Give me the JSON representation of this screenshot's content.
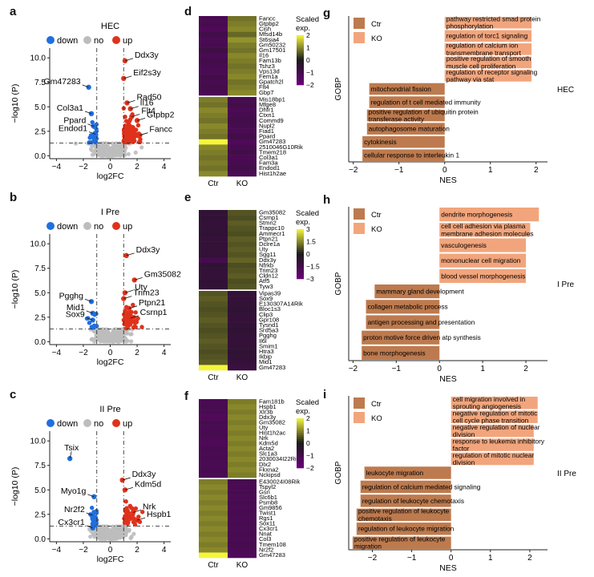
{
  "panel_letters": [
    "a",
    "b",
    "c",
    "d",
    "e",
    "f",
    "g",
    "h",
    "i"
  ],
  "legend_volcano": {
    "down": "down",
    "no": "no",
    "up": "up"
  },
  "legend_bar": {
    "ctr": "Ctr",
    "ko": "KO"
  },
  "heatmap_legend_title_1": "Scaled",
  "heatmap_legend_title_2": "exp.",
  "colors": {
    "down": "#1f6fe0",
    "no": "#bdbdbd",
    "up": "#e0321b",
    "ctr": "#bd7a4e",
    "ko": "#f2a57c",
    "heat_low": "#6b007a",
    "heat_mid": "#1a1a1a",
    "heat_high": "#f5f53c"
  },
  "chart_data": [
    {
      "type": "scatter",
      "panel": "a",
      "title": "HEC",
      "xlabel": "log2FC",
      "ylabel": "−log10 (P)",
      "xlim": [
        -4.5,
        4.5
      ],
      "ylim": [
        -0.3,
        11
      ],
      "xticks": [
        -4,
        -2,
        0,
        2,
        4
      ],
      "yticks": [
        0,
        2.5,
        5,
        7.5,
        10
      ],
      "ytick_labels": [
        "0.0",
        "2.5",
        "5.0",
        "7.5",
        "10.0"
      ],
      "thresholds": {
        "x": [
          -1,
          1
        ],
        "y": 1.3
      },
      "labeled_points": [
        {
          "label": "Ddx3y",
          "x": 1.1,
          "y": 9.7,
          "group": "up"
        },
        {
          "label": "Eif2s3y",
          "x": 1.0,
          "y": 7.9,
          "group": "up"
        },
        {
          "label": "Gm47283",
          "x": -1.6,
          "y": 7.0,
          "group": "down"
        },
        {
          "label": "Rad50",
          "x": 1.25,
          "y": 5.4,
          "group": "up"
        },
        {
          "label": "Il16",
          "x": 1.5,
          "y": 4.8,
          "group": "up"
        },
        {
          "label": "Col3a1",
          "x": -1.4,
          "y": 4.3,
          "group": "down"
        },
        {
          "label": "Flt4",
          "x": 1.6,
          "y": 4.0,
          "group": "up"
        },
        {
          "label": "Gtpbp2",
          "x": 2.0,
          "y": 3.6,
          "group": "up"
        },
        {
          "label": "Ppard",
          "x": -1.2,
          "y": 3.0,
          "group": "down"
        },
        {
          "label": "Endod1",
          "x": -1.1,
          "y": 2.2,
          "group": "down"
        },
        {
          "label": "Fancc",
          "x": 2.2,
          "y": 2.1,
          "group": "up"
        }
      ]
    },
    {
      "type": "scatter",
      "panel": "b",
      "title": "I Pre",
      "xlabel": "log2FC",
      "ylabel": "−log10 (P)",
      "xlim": [
        -4.5,
        4.5
      ],
      "ylim": [
        -0.3,
        11
      ],
      "xticks": [
        -4,
        -2,
        0,
        2,
        4
      ],
      "yticks": [
        0,
        2.5,
        5,
        7.5,
        10
      ],
      "ytick_labels": [
        "0.0",
        "2.5",
        "5.0",
        "7.5",
        "10.0"
      ],
      "thresholds": {
        "x": [
          -1,
          1
        ],
        "y": 1.3
      },
      "labeled_points": [
        {
          "label": "Ddx3y",
          "x": 1.2,
          "y": 8.8,
          "group": "up"
        },
        {
          "label": "Gm35082",
          "x": 1.8,
          "y": 6.3,
          "group": "up"
        },
        {
          "label": "Uty",
          "x": 1.1,
          "y": 5.0,
          "group": "up"
        },
        {
          "label": "Trim23",
          "x": 1.0,
          "y": 4.4,
          "group": "up"
        },
        {
          "label": "Pgghg",
          "x": -1.4,
          "y": 4.1,
          "group": "down"
        },
        {
          "label": "Ptpn21",
          "x": 1.4,
          "y": 3.4,
          "group": "up"
        },
        {
          "label": "Mid1",
          "x": -1.3,
          "y": 2.9,
          "group": "down"
        },
        {
          "label": "Csrnp1",
          "x": 1.5,
          "y": 2.4,
          "group": "up"
        },
        {
          "label": "Sox9",
          "x": -1.3,
          "y": 2.2,
          "group": "down"
        }
      ]
    },
    {
      "type": "scatter",
      "panel": "c",
      "title": "II Pre",
      "xlabel": "log2FC",
      "ylabel": "−log10 (P)",
      "xlim": [
        -4.5,
        4.5
      ],
      "ylim": [
        -0.3,
        11
      ],
      "xticks": [
        -4,
        -2,
        0,
        2,
        4
      ],
      "yticks": [
        0,
        2.5,
        5,
        7.5,
        10
      ],
      "ytick_labels": [
        "0.0",
        "2.5",
        "5.0",
        "7.5",
        "10.0"
      ],
      "thresholds": {
        "x": [
          -1,
          1
        ],
        "y": 1.3
      },
      "labeled_points": [
        {
          "label": "Tsix",
          "x": -3.0,
          "y": 8.2,
          "group": "down"
        },
        {
          "label": "Ddx3y",
          "x": 0.9,
          "y": 6.0,
          "group": "up"
        },
        {
          "label": "Kdm5d",
          "x": 1.1,
          "y": 5.0,
          "group": "up"
        },
        {
          "label": "Myo1g",
          "x": -1.2,
          "y": 4.3,
          "group": "down"
        },
        {
          "label": "Nrk",
          "x": 1.7,
          "y": 2.7,
          "group": "up"
        },
        {
          "label": "Nr2f2",
          "x": -1.3,
          "y": 2.4,
          "group": "down"
        },
        {
          "label": "Hspb1",
          "x": 2.0,
          "y": 1.9,
          "group": "up"
        },
        {
          "label": "Cx3cr1",
          "x": -1.3,
          "y": 1.1,
          "group": "down"
        }
      ]
    },
    {
      "type": "heatmap",
      "panel": "d",
      "columns": [
        "Ctr",
        "KO"
      ],
      "legend_range": [
        -2,
        2
      ],
      "legend_ticks": [
        2,
        1,
        0,
        -1,
        -2
      ],
      "rows": [
        "Fancc",
        "Gtpbp2",
        "Cish",
        "Mfsd14b",
        "St6sia4",
        "Gm50232",
        "Gm17501",
        "Il16",
        "Fam13b",
        "Tshz3",
        "Vps13d",
        "Fem1a",
        "Gpatch2l",
        "Flt4",
        "Gbp7",
        "Mis18bp1",
        "Mfge8",
        "Dhfr1",
        "Ctxn1",
        "Commd9",
        "Nupl2",
        "Fiad1",
        "Ppard",
        "Gm47283",
        "2510046G10Rik",
        "Tmem218",
        "Col3a1",
        "Fam3a",
        "Endod1",
        "Hist1h2ae"
      ],
      "split_after": 15,
      "values": [
        [
          -1.2,
          0.8
        ],
        [
          -1.1,
          0.9
        ],
        [
          -1.3,
          1.0
        ],
        [
          -1.0,
          0.7
        ],
        [
          -1.2,
          1.1
        ],
        [
          -1.1,
          0.9
        ],
        [
          -0.9,
          0.8
        ],
        [
          -1.2,
          1.0
        ],
        [
          -1.0,
          0.9
        ],
        [
          -1.1,
          0.8
        ],
        [
          -1.2,
          0.9
        ],
        [
          -1.0,
          1.0
        ],
        [
          -1.1,
          0.8
        ],
        [
          -1.0,
          0.9
        ],
        [
          -1.2,
          1.0
        ],
        [
          0.9,
          -1.1
        ],
        [
          0.8,
          -1.0
        ],
        [
          1.0,
          -1.2
        ],
        [
          0.9,
          -1.1
        ],
        [
          0.8,
          -1.0
        ],
        [
          1.0,
          -1.1
        ],
        [
          0.9,
          -1.2
        ],
        [
          0.8,
          -1.0
        ],
        [
          2.0,
          -1.3
        ],
        [
          1.0,
          -1.1
        ],
        [
          0.9,
          -1.0
        ],
        [
          0.8,
          -1.2
        ],
        [
          0.9,
          -1.1
        ],
        [
          0.8,
          -1.0
        ],
        [
          1.0,
          -1.2
        ]
      ]
    },
    {
      "type": "heatmap",
      "panel": "e",
      "columns": [
        "Ctr",
        "KO"
      ],
      "legend_range": [
        -3,
        3
      ],
      "legend_ticks": [
        3,
        1.5,
        0,
        -1.5,
        -3
      ],
      "rows": [
        "Gm35082",
        "Csrnp1",
        "Stmn2",
        "Trappc10",
        "Ammecr1",
        "Ptpn21",
        "Dclre1a",
        "Uty",
        "Sgg11",
        "Ddx3y",
        "Nfrkb",
        "Trim23",
        "Cldn12",
        "Atf5",
        "Tyw3",
        "Vipas39",
        "Sox9",
        "E130307A14Rik",
        "Bloc1s3",
        "Clip3",
        "Gpr108",
        "Tysnd1",
        "Srd5a3",
        "Pgghg",
        "Il6l",
        "Smim1",
        "Htra3",
        "Ikbip",
        "Mid1",
        "Gm47283"
      ],
      "split_after": 15,
      "values": [
        [
          -0.9,
          0.8
        ],
        [
          -0.8,
          0.7
        ],
        [
          -1.0,
          0.9
        ],
        [
          -0.9,
          0.8
        ],
        [
          -0.8,
          0.7
        ],
        [
          -1.0,
          0.9
        ],
        [
          -0.9,
          0.8
        ],
        [
          -1.0,
          0.9
        ],
        [
          -0.9,
          0.8
        ],
        [
          -1.6,
          1.0
        ],
        [
          -0.8,
          0.7
        ],
        [
          -0.9,
          0.8
        ],
        [
          -1.0,
          0.9
        ],
        [
          -0.8,
          0.7
        ],
        [
          -0.9,
          0.8
        ],
        [
          0.8,
          -0.9
        ],
        [
          0.9,
          -1.0
        ],
        [
          0.8,
          -0.9
        ],
        [
          0.7,
          -0.8
        ],
        [
          0.8,
          -0.9
        ],
        [
          0.9,
          -1.0
        ],
        [
          0.8,
          -0.9
        ],
        [
          0.7,
          -0.8
        ],
        [
          0.8,
          -0.9
        ],
        [
          0.9,
          -1.0
        ],
        [
          0.8,
          -0.9
        ],
        [
          0.7,
          -0.8
        ],
        [
          0.8,
          -0.9
        ],
        [
          0.9,
          -1.0
        ],
        [
          3.0,
          -1.2
        ]
      ]
    },
    {
      "type": "heatmap",
      "panel": "f",
      "columns": [
        "Ctr",
        "KO"
      ],
      "legend_range": [
        -2,
        2
      ],
      "legend_ticks": [
        2,
        1,
        0,
        -1,
        -2
      ],
      "rows": [
        "Fam181b",
        "Hspb1",
        "Xlr3b",
        "Ddx3y",
        "Gm35082",
        "Uty",
        "Hist1h2ac",
        "Nrk",
        "Kdm5d",
        "Acta2",
        "Slc1a3",
        "2030034I22Rik",
        "Dlx2",
        "Fkxna2",
        "Nckipsd",
        "E430024I08Rik",
        "Tspyl2",
        "Gsn",
        "Slc6b1",
        "Psmb8",
        "Gm9856",
        "Twist1",
        "Rgs1",
        "Sox11",
        "Cx3cr1",
        "Nnat",
        "Col3",
        "Tmem108",
        "Nr2f2",
        "Gm47283"
      ],
      "split_after": 15,
      "values": [
        [
          -1.2,
          0.9
        ],
        [
          -1.1,
          1.0
        ],
        [
          -1.2,
          0.9
        ],
        [
          -1.3,
          1.0
        ],
        [
          -1.1,
          0.9
        ],
        [
          -1.2,
          1.0
        ],
        [
          -1.1,
          0.9
        ],
        [
          -1.2,
          1.0
        ],
        [
          -1.3,
          0.9
        ],
        [
          -1.1,
          1.0
        ],
        [
          -1.2,
          0.9
        ],
        [
          -1.1,
          1.0
        ],
        [
          -1.2,
          0.9
        ],
        [
          -1.1,
          1.0
        ],
        [
          -1.2,
          0.9
        ],
        [
          0.9,
          -1.1
        ],
        [
          1.0,
          -1.2
        ],
        [
          0.9,
          -1.1
        ],
        [
          1.0,
          -1.2
        ],
        [
          0.9,
          -1.1
        ],
        [
          1.0,
          -1.2
        ],
        [
          0.9,
          -1.1
        ],
        [
          1.0,
          -1.2
        ],
        [
          0.9,
          -1.1
        ],
        [
          1.0,
          -1.2
        ],
        [
          0.9,
          -1.1
        ],
        [
          1.0,
          -1.2
        ],
        [
          0.9,
          -1.1
        ],
        [
          1.0,
          -1.2
        ],
        [
          2.0,
          -1.3
        ]
      ]
    },
    {
      "type": "bar",
      "panel": "g",
      "title": "HEC",
      "xlabel": "NES",
      "ylabel": "GOBP",
      "xlim": [
        -2.1,
        2.25
      ],
      "xticks": [
        -2,
        -1,
        0,
        1,
        2
      ],
      "categories": [
        "pathway restricted smad protein phosphorylation",
        "regulation of torc1 signaling",
        "regulation of calcium ion transmembrane transport",
        "positive regulation of smooth muscle cell proliferation",
        "regulation of receptor signaling pathway via stat",
        "mitochondrial fission",
        "regulation of t cell mediated immunity",
        "positive regulation of ubiquitin protein transferase activity",
        "autophagosome maturation",
        "cytokinesis",
        "cellular response to interleukin 1"
      ],
      "values": [
        1.9,
        1.9,
        1.9,
        1.9,
        1.9,
        -1.65,
        -1.65,
        -1.7,
        -1.7,
        -1.8,
        -1.8
      ],
      "groups": [
        "KO",
        "KO",
        "KO",
        "KO",
        "KO",
        "Ctr",
        "Ctr",
        "Ctr",
        "Ctr",
        "Ctr",
        "Ctr"
      ]
    },
    {
      "type": "bar",
      "panel": "h",
      "title": "I Pre",
      "xlabel": "NES",
      "ylabel": "GOBP",
      "xlim": [
        -2.1,
        2.5
      ],
      "xticks": [
        -2,
        -1,
        0,
        1,
        2
      ],
      "categories": [
        "dendrite morphogenesis",
        "cell cell adhesion via plasma membrane adhesion molecules",
        "vasculogenesis",
        "mononuclear cell migration",
        "blood vessel morphogenesis",
        "mammary gland development",
        "collagen metabolic process",
        "antigen processing and presentation",
        "proton motive force driven atp synthesis",
        "bone morphogenesis"
      ],
      "values": [
        2.3,
        2.1,
        2.0,
        2.0,
        2.0,
        -1.5,
        -1.7,
        -1.7,
        -1.8,
        -1.8
      ],
      "groups": [
        "KO",
        "KO",
        "KO",
        "KO",
        "KO",
        "Ctr",
        "Ctr",
        "Ctr",
        "Ctr",
        "Ctr"
      ]
    },
    {
      "type": "bar",
      "panel": "i",
      "title": "II Pre",
      "xlabel": "NES",
      "ylabel": "GOBP",
      "xlim": [
        -2.6,
        2.45
      ],
      "xticks": [
        -2,
        -1,
        0,
        1,
        2
      ],
      "categories": [
        "cell migration involved in sprouting angiogenesis",
        "negative regulation of mitotic cell cycle phase transition",
        "negative regulation of nuclear division",
        "response to leukemia inhibitory factor",
        "regulation of mitotic nuclear division",
        "leukocyte migration",
        "regulation of calcium mediated signaling",
        "regulation of leukocyte chemotaxis",
        "positive regulation of leukocyte chemotaxis",
        "regulation of leukocyte migration",
        "positive regulation of leukocyte migration"
      ],
      "values": [
        2.2,
        2.2,
        2.1,
        2.1,
        2.1,
        -2.2,
        -2.3,
        -2.3,
        -2.4,
        -2.4,
        -2.5
      ],
      "groups": [
        "KO",
        "KO",
        "KO",
        "KO",
        "KO",
        "Ctr",
        "Ctr",
        "Ctr",
        "Ctr",
        "Ctr",
        "Ctr"
      ]
    }
  ]
}
